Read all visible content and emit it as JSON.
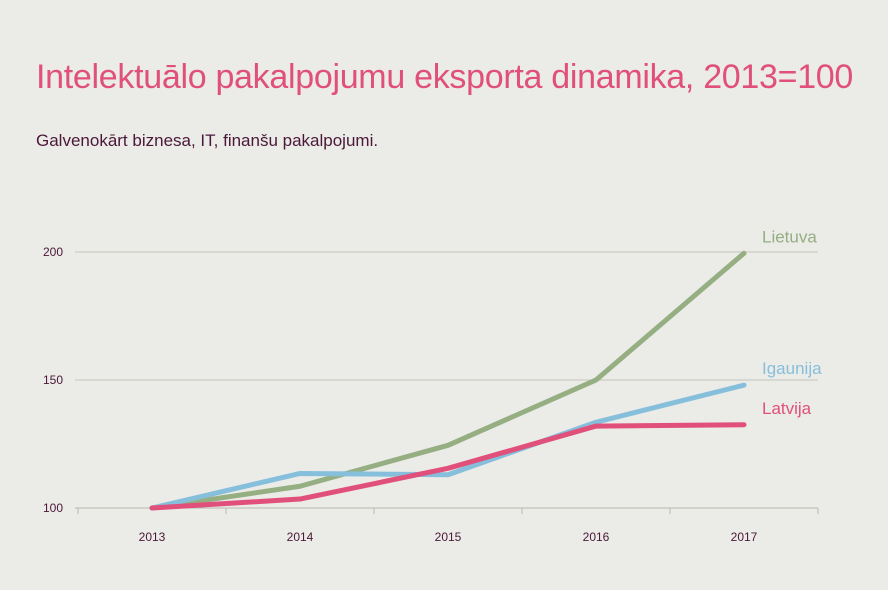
{
  "header": {
    "title": "Intelektuālo pakalpojumu eksporta dinamika, 2013=100",
    "subtitle": "Galvenokārt biznesa, IT, finanšu pakalpojumi."
  },
  "chart_data": {
    "type": "line",
    "title": "Intelektuālo pakalpojumu eksporta dinamika, 2013=100",
    "subtitle": "Galvenokārt biznesa, IT, finanšu pakalpojumi.",
    "categories": [
      "2013",
      "2014",
      "2015",
      "2016",
      "2017"
    ],
    "yticks": [
      100,
      150,
      200
    ],
    "ylim": [
      100,
      200
    ],
    "grid": true,
    "legend": "inline-right",
    "series": [
      {
        "name": "Lietuva",
        "color": "#95ae82",
        "values": [
          100,
          108.5,
          124.5,
          150,
          199.5
        ]
      },
      {
        "name": "Igaunija",
        "color": "#85bfdb",
        "values": [
          100,
          113.5,
          113,
          133.5,
          148
        ]
      },
      {
        "name": "Latvija",
        "color": "#e0507a",
        "values": [
          100,
          103.5,
          115.5,
          132,
          132.5
        ]
      }
    ]
  }
}
